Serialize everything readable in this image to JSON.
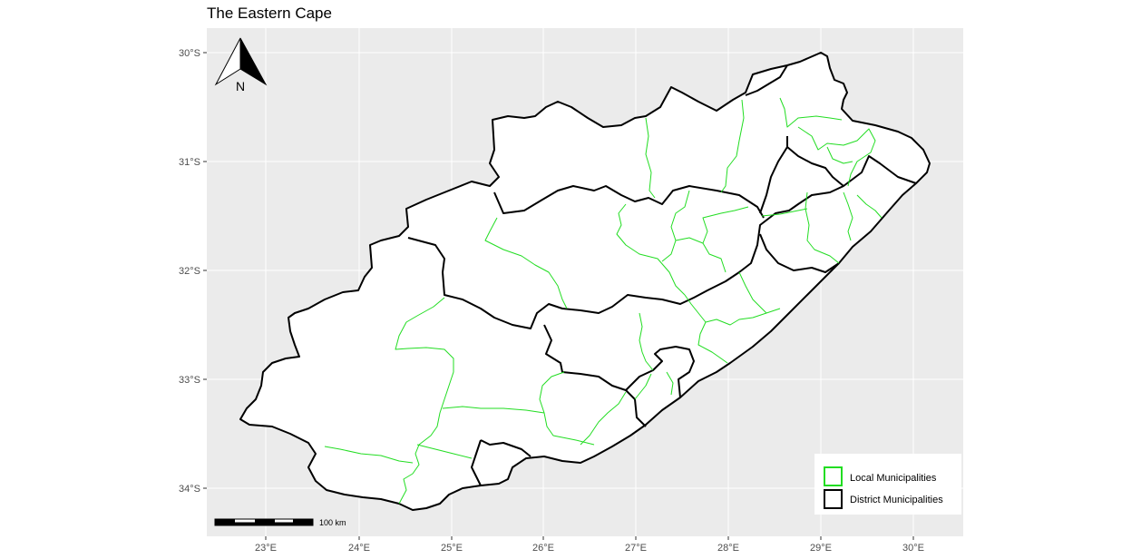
{
  "title": "The Eastern Cape",
  "axes": {
    "x_ticks": [
      "23°E",
      "24°E",
      "25°E",
      "26°E",
      "27°E",
      "28°E",
      "29°E",
      "30°E"
    ],
    "y_ticks": [
      "30°S",
      "31°S",
      "32°S",
      "33°S",
      "34°S"
    ]
  },
  "north_arrow": {
    "label": "N"
  },
  "scale_bar": {
    "label": "100 km"
  },
  "legend": {
    "items": [
      {
        "label": "Local Municipalities",
        "color": "#22dd22"
      },
      {
        "label": "District Municipalities",
        "color": "#000000"
      }
    ]
  },
  "colors": {
    "panel_background": "#ebebeb",
    "gridline": "#ffffff",
    "land_fill": "#ffffff",
    "district_border": "#000000",
    "local_border": "#22dd22"
  }
}
